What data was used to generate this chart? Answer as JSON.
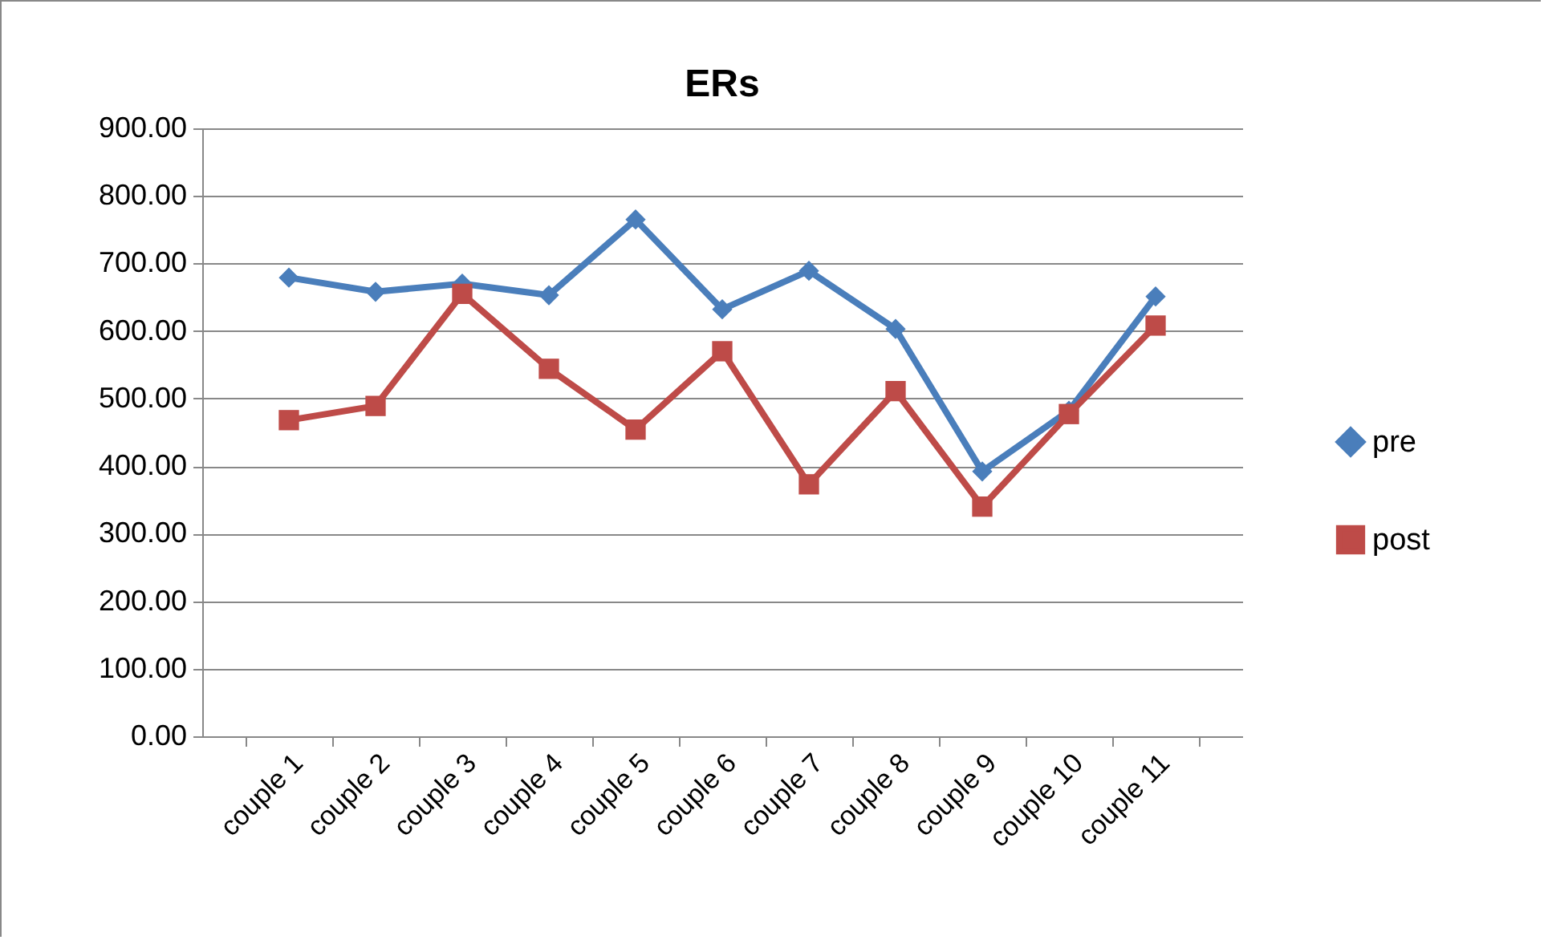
{
  "chart_data": {
    "type": "line",
    "title": "ERs",
    "categories": [
      "couple 1",
      "couple 2",
      "couple 3",
      "couple 4",
      "couple 5",
      "couple 6",
      "couple 7",
      "couple 8",
      "couple 9",
      "couple 10",
      "couple 11"
    ],
    "series": [
      {
        "name": "pre",
        "color": "#4a7ebb",
        "marker": "diamond",
        "values": [
          679,
          658,
          670,
          653,
          765,
          632,
          689,
          603,
          392,
          482,
          651
        ]
      },
      {
        "name": "post",
        "color": "#be4b48",
        "marker": "square",
        "values": [
          468,
          489,
          655,
          544,
          454,
          570,
          373,
          511,
          340,
          477,
          608
        ]
      }
    ],
    "ylim": [
      0,
      900
    ],
    "yticks": [
      {
        "value": 0,
        "label": "0.00"
      },
      {
        "value": 100,
        "label": "100.00"
      },
      {
        "value": 200,
        "label": "200.00"
      },
      {
        "value": 300,
        "label": "300.00"
      },
      {
        "value": 400,
        "label": "400.00"
      },
      {
        "value": 500,
        "label": "500.00"
      },
      {
        "value": 600,
        "label": "600.00"
      },
      {
        "value": 700,
        "label": "700.00"
      },
      {
        "value": 800,
        "label": "800.00"
      },
      {
        "value": 900,
        "label": "900.00"
      }
    ],
    "grid": "y",
    "legend": "right",
    "line_style": "solid"
  }
}
